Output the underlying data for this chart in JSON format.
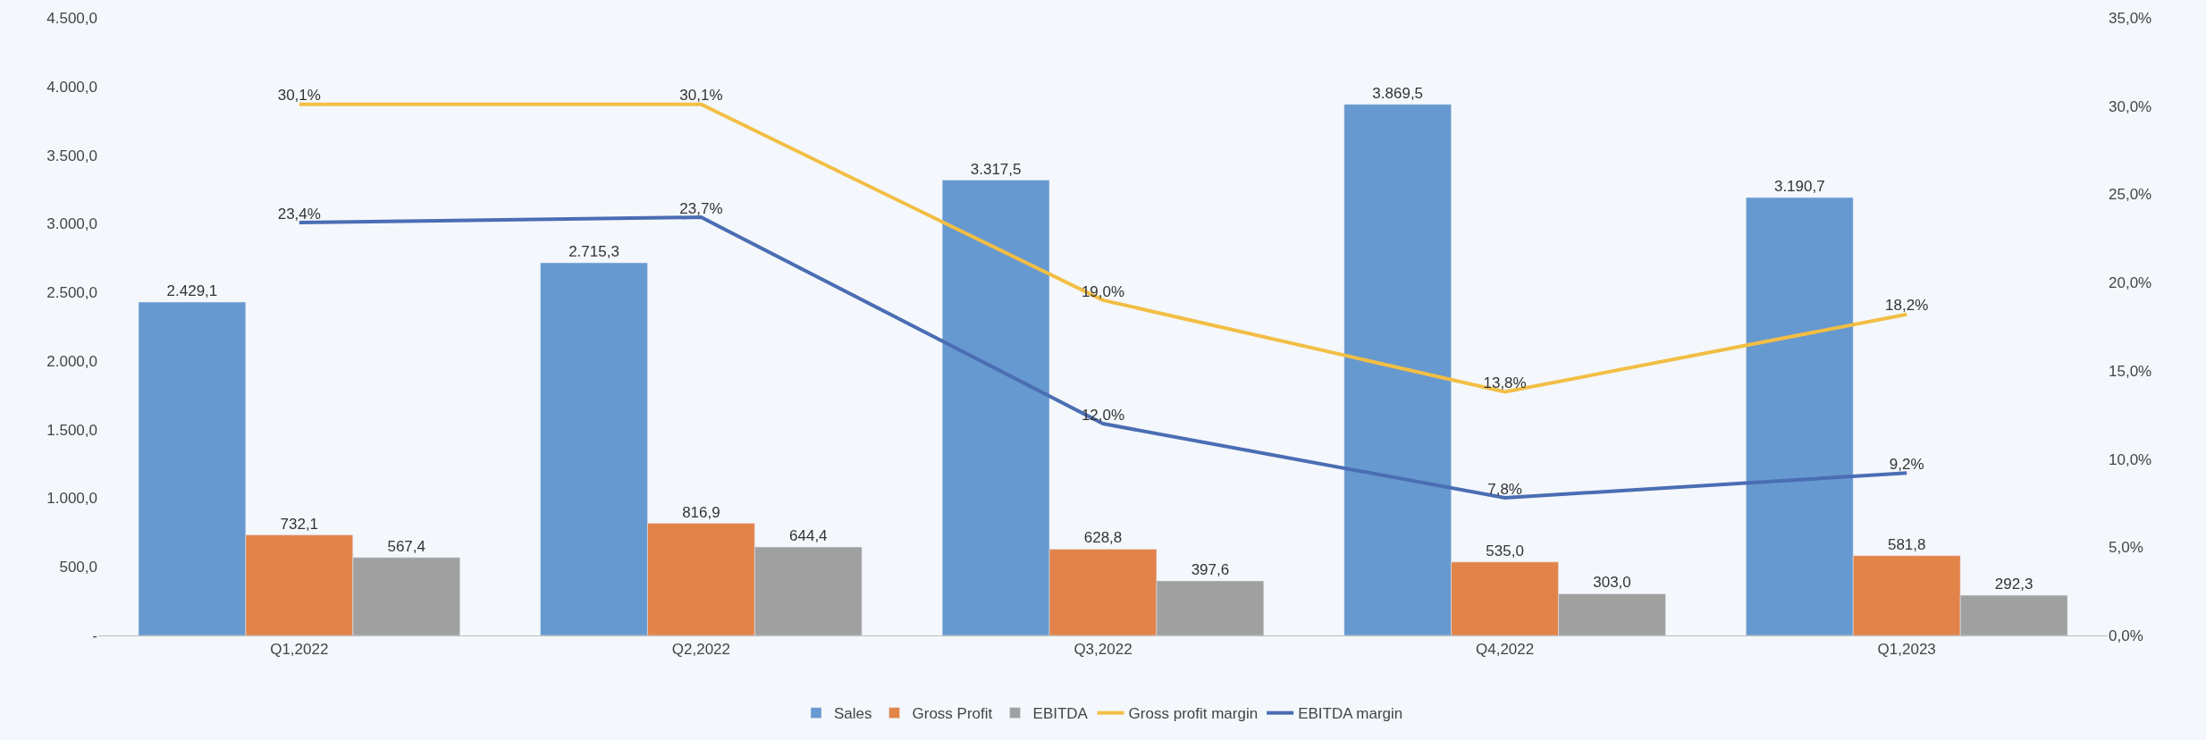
{
  "chart_data": {
    "type": "bar",
    "categories": [
      "Q1,2022",
      "Q2,2022",
      "Q3,2022",
      "Q4,2022",
      "Q1,2023"
    ],
    "series": [
      {
        "name": "Sales",
        "color": "#6699cf",
        "values": [
          2429.1,
          2715.3,
          3317.5,
          3869.5,
          3190.7
        ],
        "value_labels": [
          "2.429,1",
          "2.715,3",
          "3.317,5",
          "3.869,5",
          "3.190,7"
        ]
      },
      {
        "name": "Gross Profit",
        "color": "#e2834a",
        "values": [
          732.1,
          816.9,
          628.8,
          535.0,
          581.8
        ],
        "value_labels": [
          "732,1",
          "816,9",
          "628,8",
          "535,0",
          "581,8"
        ]
      },
      {
        "name": "EBITDA",
        "color": "#a0a0a0",
        "values": [
          567.4,
          644.4,
          397.6,
          303.0,
          292.3
        ],
        "value_labels": [
          "567,4",
          "644,4",
          "397,6",
          "303,0",
          "292,3"
        ]
      },
      {
        "name": "Gross profit margin",
        "type": "line",
        "axis": "y2",
        "color": "#f2be44",
        "values": [
          30.1,
          30.1,
          19.0,
          13.8,
          18.2
        ],
        "value_labels": [
          "30,1%",
          "30,1%",
          "19,0%",
          "13,8%",
          "18,2%"
        ]
      },
      {
        "name": "EBITDA margin",
        "type": "line",
        "axis": "y2",
        "color": "#4a6db3",
        "values": [
          23.4,
          23.7,
          12.0,
          7.8,
          9.2
        ],
        "value_labels": [
          "23,4%",
          "23,7%",
          "12,0%",
          "7,8%",
          "9,2%"
        ]
      }
    ],
    "ylim": [
      0,
      4500
    ],
    "yticks": [
      {
        "value": 0,
        "label": "-"
      },
      {
        "value": 500,
        "label": "500,0"
      },
      {
        "value": 1000,
        "label": "1.000,0"
      },
      {
        "value": 1500,
        "label": "1.500,0"
      },
      {
        "value": 2000,
        "label": "2.000,0"
      },
      {
        "value": 2500,
        "label": "2.500,0"
      },
      {
        "value": 3000,
        "label": "3.000,0"
      },
      {
        "value": 3500,
        "label": "3.500,0"
      },
      {
        "value": 4000,
        "label": "4.000,0"
      },
      {
        "value": 4500,
        "label": "4.500,0"
      }
    ],
    "y2lim": [
      0,
      35
    ],
    "y2ticks": [
      {
        "value": 0,
        "label": "0,0%"
      },
      {
        "value": 5,
        "label": "5,0%"
      },
      {
        "value": 10,
        "label": "10,0%"
      },
      {
        "value": 15,
        "label": "15,0%"
      },
      {
        "value": 20,
        "label": "20,0%"
      },
      {
        "value": 25,
        "label": "25,0%"
      },
      {
        "value": 30,
        "label": "30,0%"
      },
      {
        "value": 35,
        "label": "35,0%"
      }
    ],
    "grid": false,
    "legend": "bottom",
    "marker": "none",
    "line_style": "solid"
  }
}
